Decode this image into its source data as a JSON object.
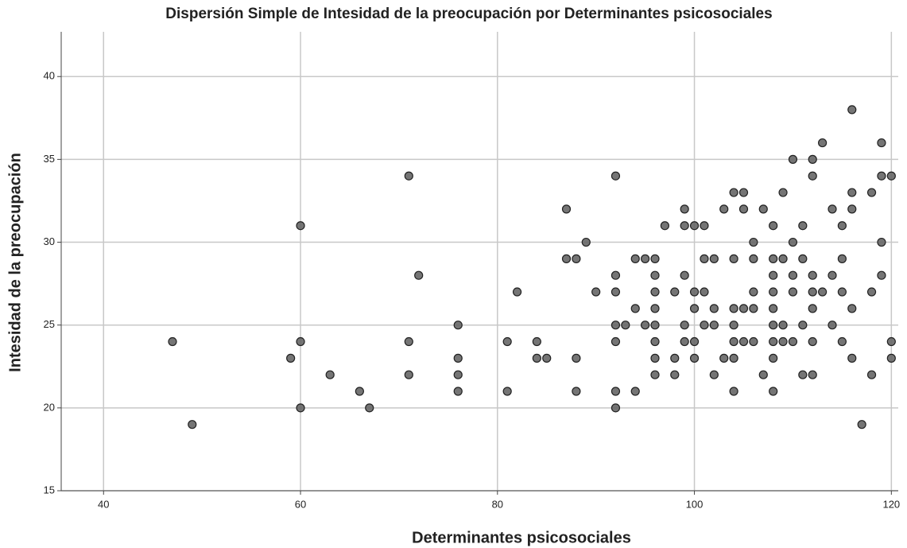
{
  "chart_data": {
    "type": "scatter",
    "title": "Dispersión Simple de Intesidad de la preocupación por Determinantes psicosociales",
    "x_label": "Determinantes psicosociales",
    "y_label": "Intesidad de la preocupación",
    "x": [
      47,
      49,
      59,
      60,
      60,
      60,
      63,
      66,
      67,
      71,
      71,
      71,
      72,
      76,
      76,
      76,
      76,
      81,
      81,
      82,
      84,
      84,
      85,
      87,
      87,
      88,
      88,
      88,
      89,
      90,
      92,
      92,
      92,
      92,
      92,
      92,
      92,
      93,
      94,
      94,
      94,
      95,
      95,
      96,
      96,
      96,
      96,
      96,
      96,
      96,
      96,
      97,
      98,
      98,
      98,
      99,
      99,
      99,
      99,
      99,
      100,
      100,
      100,
      100,
      100,
      101,
      101,
      101,
      101,
      102,
      102,
      102,
      102,
      103,
      103,
      104,
      104,
      104,
      104,
      104,
      104,
      104,
      105,
      105,
      105,
      105,
      106,
      106,
      106,
      106,
      106,
      107,
      107,
      108,
      108,
      108,
      108,
      108,
      108,
      108,
      108,
      108,
      109,
      109,
      109,
      109,
      110,
      110,
      110,
      110,
      110,
      111,
      111,
      111,
      111,
      112,
      112,
      112,
      112,
      112,
      112,
      112,
      113,
      113,
      114,
      114,
      114,
      115,
      115,
      115,
      115,
      116,
      116,
      116,
      116,
      116,
      117,
      118,
      118,
      118,
      119,
      119,
      119,
      119,
      120,
      120,
      120
    ],
    "values": [
      24,
      19,
      23,
      24,
      20,
      31,
      22,
      21,
      20,
      34,
      24,
      22,
      28,
      25,
      23,
      22,
      21,
      24,
      21,
      27,
      24,
      23,
      23,
      32,
      29,
      29,
      23,
      21,
      30,
      27,
      34,
      28,
      27,
      25,
      24,
      21,
      20,
      25,
      29,
      26,
      21,
      29,
      25,
      29,
      28,
      27,
      26,
      25,
      24,
      23,
      22,
      31,
      27,
      23,
      22,
      32,
      31,
      28,
      25,
      24,
      31,
      27,
      26,
      24,
      23,
      31,
      29,
      27,
      25,
      29,
      26,
      25,
      22,
      32,
      23,
      33,
      29,
      26,
      25,
      24,
      23,
      21,
      33,
      32,
      26,
      24,
      30,
      29,
      27,
      26,
      24,
      32,
      22,
      31,
      29,
      28,
      27,
      26,
      25,
      24,
      23,
      21,
      33,
      29,
      25,
      24,
      35,
      30,
      28,
      27,
      24,
      31,
      29,
      25,
      22,
      35,
      34,
      28,
      27,
      26,
      24,
      22,
      36,
      27,
      32,
      28,
      25,
      31,
      29,
      27,
      24,
      38,
      33,
      32,
      26,
      23,
      19,
      33,
      27,
      22,
      36,
      34,
      30,
      28,
      34,
      24,
      23
    ],
    "color": "#666666",
    "xlim": [
      35.7,
      120.7
    ],
    "xticks": [
      40,
      60,
      80,
      100,
      120
    ],
    "ylim": [
      15,
      42.7
    ],
    "yticks": [
      15,
      20,
      25,
      30,
      35,
      40
    ],
    "grid": true
  }
}
